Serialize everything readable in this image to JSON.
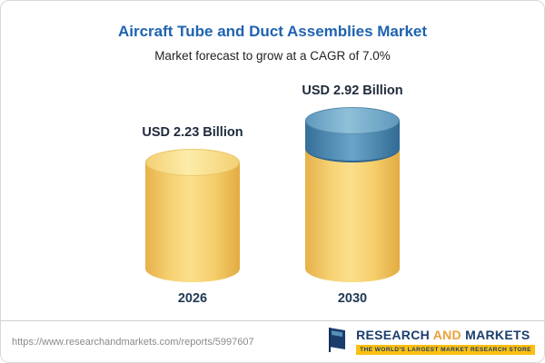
{
  "chart_data": {
    "type": "bar",
    "title": "Aircraft Tube and Duct Assemblies Market",
    "subtitle": "Market forecast to grow at a CAGR of 7.0%",
    "categories": [
      "2026",
      "2030"
    ],
    "values": [
      2.23,
      2.92
    ],
    "value_labels": [
      "USD 2.23 Billion",
      "USD 2.92 Billion"
    ],
    "unit": "USD Billion",
    "cagr": "7.0%",
    "bar_colors": [
      "#f6d375",
      "#f6d375 with #5590b6 growth segment"
    ],
    "legend_position": "none",
    "grid": false
  },
  "colors": {
    "title_blue": "#1e63b0",
    "bar_yellow": "#f6d375",
    "bar_blue": "#5590b6",
    "logo_navy": "#1b3d6e",
    "logo_gold": "#fdc010"
  },
  "footer": {
    "url": "https://www.researchandmarkets.com/reports/5997607",
    "logo": {
      "word1": "RESEARCH",
      "word2": "AND",
      "word3": "MARKETS",
      "tagline": "THE WORLD'S LARGEST MARKET RESEARCH STORE"
    }
  }
}
